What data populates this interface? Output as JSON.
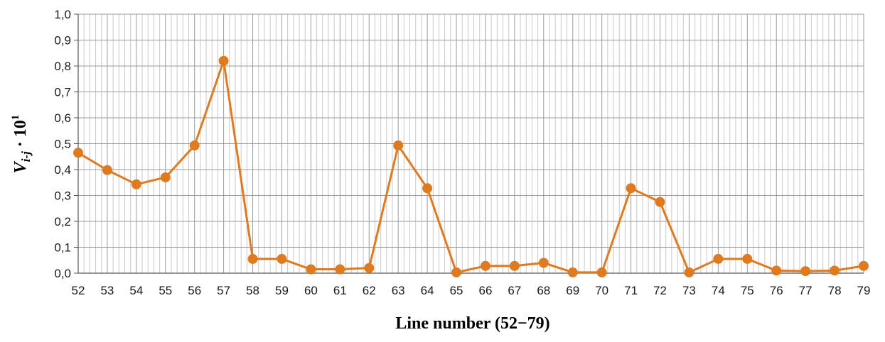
{
  "chart_data": {
    "type": "line",
    "xlabel": "Line number (52−79)",
    "ylabel": {
      "base": "V",
      "subscript": "i-j",
      "rest": " · 10",
      "superscript": "1"
    },
    "ylim": [
      0.0,
      1.0
    ],
    "yticks": [
      "0,0",
      "0,1",
      "0,2",
      "0,3",
      "0,4",
      "0,5",
      "0,6",
      "0,7",
      "0,8",
      "0,9",
      "1,0"
    ],
    "grid": true,
    "minor_vertical_grid_per_category": 5,
    "categories": [
      "52",
      "53",
      "54",
      "55",
      "56",
      "57",
      "58",
      "59",
      "60",
      "61",
      "62",
      "63",
      "64",
      "65",
      "66",
      "67",
      "68",
      "69",
      "70",
      "71",
      "72",
      "73",
      "74",
      "75",
      "76",
      "77",
      "78",
      "79"
    ],
    "series": [
      {
        "values": [
          0.465,
          0.398,
          0.343,
          0.37,
          0.493,
          0.82,
          0.055,
          0.055,
          0.015,
          0.015,
          0.02,
          0.493,
          0.328,
          0.003,
          0.028,
          0.028,
          0.04,
          0.003,
          0.003,
          0.328,
          0.275,
          0.003,
          0.055,
          0.055,
          0.01,
          0.008,
          0.01,
          0.028
        ],
        "color": "#E07A1E"
      }
    ]
  }
}
